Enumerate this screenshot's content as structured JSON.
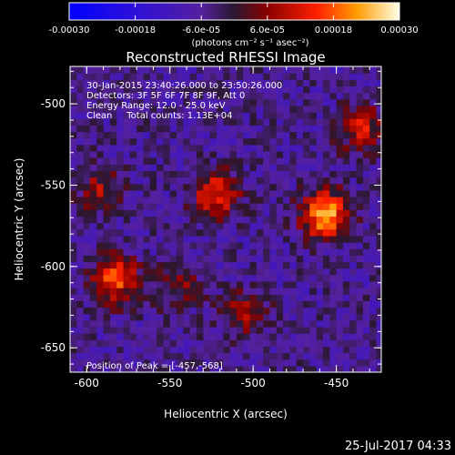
{
  "chart_data": {
    "type": "heatmap",
    "title": "Reconstructed RHESSI Image",
    "xlabel": "Heliocentric X (arcsec)",
    "ylabel": "Heliocentric Y (arcsec)",
    "xlim": [
      -610,
      -423
    ],
    "ylim": [
      -665,
      -477
    ],
    "x_ticks": [
      -600,
      -550,
      -500,
      -450
    ],
    "y_ticks": [
      -500,
      -550,
      -600,
      -650
    ],
    "colorbar": {
      "ticks": [
        "-0.00030",
        "-0.00018",
        "-6.0e-05",
        "6.0e-05",
        "0.00018",
        "0.00030"
      ],
      "tick_values": [
        -0.0003,
        -0.00018,
        -6e-05,
        6e-05,
        0.00018,
        0.0003
      ],
      "units": "(photons cm⁻² s⁻¹ asec⁻²)",
      "range": [
        -0.0003,
        0.0003
      ],
      "colormap": "blue-purple-red-yellow-white"
    },
    "annotations": [
      "30-Jan-2015 23:40:26.000 to 23:50:26.000",
      "Detectors: 3F 5F 6F 7F 8F 9F, Att 0",
      "Energy Range: 12.0 - 25.0 keV",
      "Clean     Total counts: 1.13E+04"
    ],
    "peak_label": "Position of Peak = [-457,-568]",
    "peak": [
      -457,
      -568
    ],
    "sources": [
      {
        "x": -457,
        "y": -568,
        "amplitude": 0.0003
      },
      {
        "x": -522,
        "y": -555,
        "amplitude": 0.0002
      },
      {
        "x": -583,
        "y": -608,
        "amplitude": 0.00022
      },
      {
        "x": -435,
        "y": -515,
        "amplitude": 0.00016
      },
      {
        "x": -592,
        "y": -552,
        "amplitude": 0.00012
      },
      {
        "x": -505,
        "y": -628,
        "amplitude": 0.00013
      },
      {
        "x": -545,
        "y": -612,
        "amplitude": 0.0001
      }
    ]
  },
  "timestamp": "25-Jul-2017 04:33",
  "colors": {
    "background": "#000000",
    "text": "#ffffff",
    "peak": "#ffffe6"
  }
}
